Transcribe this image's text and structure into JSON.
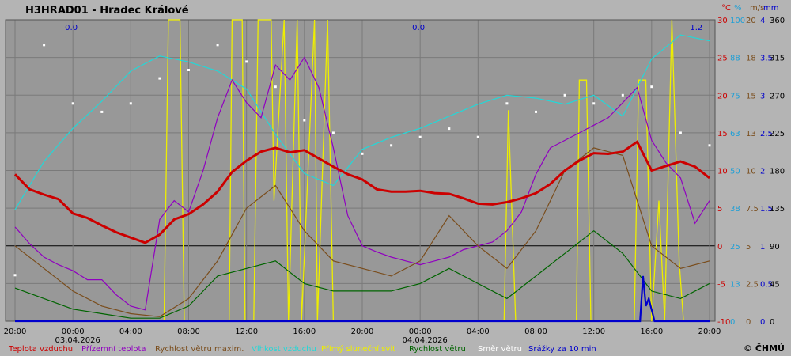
{
  "chart_data": {
    "type": "line",
    "title": "H3HRAD01 - Hradec Králové",
    "copyright": "© ČHMÚ",
    "x_tick_labels": [
      "20:00",
      "00:00",
      "04:00",
      "08:00",
      "12:00",
      "16:00",
      "20:00",
      "00:00",
      "04:00",
      "08:00",
      "12:00",
      "16:00",
      "20:00"
    ],
    "date_labels": [
      "03.04.2026",
      "04.04.2026"
    ],
    "precip_totals": [
      "0.0",
      "0.0",
      "1.2"
    ],
    "axes": [
      {
        "unit": "°C",
        "color": "#cc0000",
        "ticks": [
          "30",
          "25",
          "20",
          "15",
          "10",
          "5",
          "0",
          "-5",
          "-10"
        ],
        "range": [
          -10,
          30
        ]
      },
      {
        "unit": "%",
        "color": "#1e9fd6",
        "ticks": [
          "100",
          "88",
          "75",
          "63",
          "50",
          "38",
          "25",
          "13",
          "0"
        ],
        "range": [
          0,
          100
        ]
      },
      {
        "unit": "m/s",
        "color": "#7a4d1c",
        "ticks": [
          "20",
          "18",
          "15",
          "13",
          "10",
          "7.5",
          "5",
          "2.5",
          "0"
        ],
        "range": [
          0,
          20
        ]
      },
      {
        "unit": "mm",
        "color": "#0000cc",
        "ticks": [
          "4",
          "3.5",
          "3",
          "2.5",
          "2",
          "1.5",
          "1",
          "0.5",
          "0"
        ],
        "range": [
          0,
          4
        ]
      },
      {
        "unit": "",
        "color": "#000000",
        "ticks": [
          "360",
          "315",
          "270",
          "225",
          "180",
          "135",
          "90",
          "45",
          "0"
        ],
        "range": [
          0,
          360
        ]
      }
    ],
    "legend": [
      {
        "label": "Teplota vzduchu",
        "color": "#cc0000"
      },
      {
        "label": "Přízemní teplota",
        "color": "#9000c0"
      },
      {
        "label": "Rychlost větru maxim.",
        "color": "#7a4d1c"
      },
      {
        "label": "Vlhkost vzduchu",
        "color": "#22d8d8"
      },
      {
        "label": "Přímý sluneční svit",
        "color": "#eeee00"
      },
      {
        "label": "Rychlost větru",
        "color": "#006400"
      },
      {
        "label": "Směr větru",
        "color": "#ffffff"
      },
      {
        "label": "Srážky za 10 min",
        "color": "#0000cc"
      }
    ],
    "series": [
      {
        "name": "Teplota vzduchu",
        "unit": "°C",
        "color": "#cc0000",
        "x": [
          0,
          1,
          2,
          3,
          4,
          5,
          6,
          7,
          8,
          9,
          10,
          11,
          12,
          13,
          14,
          15,
          16,
          17,
          18,
          19,
          20,
          21,
          22,
          23,
          24,
          25,
          26,
          27,
          28,
          29,
          30,
          31,
          32,
          33,
          34,
          35,
          36,
          37,
          38,
          39,
          40,
          41,
          42,
          43,
          44,
          45,
          46,
          47,
          48
        ],
        "values": [
          9.5,
          7.5,
          6.8,
          6.2,
          4.3,
          3.7,
          2.7,
          1.8,
          1.1,
          0.4,
          1.5,
          3.5,
          4.2,
          5.5,
          7.2,
          9.8,
          11.3,
          12.5,
          13,
          12.4,
          12.7,
          11.6,
          10.5,
          9.5,
          8.8,
          7.5,
          7.2,
          7.2,
          7.3,
          7,
          6.9,
          6.3,
          5.6,
          5.5,
          5.8,
          6.3,
          7,
          8.2,
          10,
          11.3,
          12.3,
          12.2,
          12.5,
          13.8,
          10,
          10.6,
          11.2,
          10.5,
          9
        ]
      },
      {
        "name": "Přízemní teplota",
        "unit": "°C",
        "color": "#9000c0",
        "x": [
          0,
          1,
          2,
          3,
          4,
          5,
          6,
          7,
          8,
          9,
          10,
          11,
          12,
          13,
          14,
          15,
          16,
          17,
          18,
          19,
          20,
          21,
          22,
          23,
          24,
          25,
          26,
          27,
          28,
          29,
          30,
          31,
          32,
          33,
          34,
          35,
          36,
          37,
          38,
          39,
          40,
          41,
          42,
          43,
          44,
          45,
          46,
          47,
          48
        ],
        "values": [
          2.5,
          0.3,
          -1.5,
          -2.5,
          -3.3,
          -4.5,
          -4.5,
          -6.5,
          -8,
          -8.5,
          3.5,
          6,
          4.5,
          10,
          17,
          22,
          19,
          17,
          24,
          22,
          25,
          21,
          13,
          4,
          0,
          -0.8,
          -1.5,
          -2,
          -2.5,
          -2,
          -1.5,
          -0.5,
          0,
          0.5,
          2,
          4.5,
          9.5,
          13,
          14,
          15,
          16,
          17,
          19,
          21,
          14,
          11,
          9,
          3,
          6
        ]
      },
      {
        "name": "Vlhkost vzduchu",
        "unit": "%",
        "color": "#22d8d8",
        "x": [
          0,
          2,
          4,
          6,
          8,
          10,
          12,
          14,
          16,
          18,
          20,
          22,
          24,
          26,
          28,
          30,
          32,
          34,
          36,
          38,
          40,
          42,
          44,
          46,
          48
        ],
        "values": [
          37,
          53,
          64,
          73,
          83,
          88,
          86,
          83,
          77,
          62,
          49,
          45,
          57,
          61,
          64,
          68,
          72,
          75,
          74,
          72,
          75,
          68,
          87,
          95,
          93
        ]
      },
      {
        "name": "Rychlost větru maxim.",
        "unit": "m/s",
        "color": "#7a4d1c",
        "x": [
          0,
          2,
          4,
          6,
          8,
          10,
          12,
          14,
          16,
          18,
          20,
          22,
          24,
          26,
          28,
          30,
          32,
          34,
          36,
          38,
          40,
          42,
          44,
          46,
          48
        ],
        "values": [
          5,
          3.5,
          2,
          1,
          0.5,
          0.3,
          1.5,
          4,
          7.5,
          9,
          6,
          4,
          3.5,
          3,
          4,
          7,
          5,
          3.5,
          6,
          10,
          11.5,
          11,
          5,
          3.5,
          4
        ]
      },
      {
        "name": "Rychlost větru",
        "unit": "m/s",
        "color": "#006400",
        "x": [
          0,
          2,
          4,
          6,
          8,
          10,
          12,
          14,
          16,
          18,
          20,
          22,
          24,
          26,
          28,
          30,
          32,
          34,
          36,
          38,
          40,
          42,
          44,
          46,
          48
        ],
        "values": [
          2.2,
          1.5,
          0.8,
          0.5,
          0.2,
          0.2,
          1,
          3,
          3.5,
          4,
          2.5,
          2,
          2,
          2,
          2.5,
          3.5,
          2.5,
          1.5,
          3,
          4.5,
          6,
          4.5,
          2,
          1.5,
          2.5
        ]
      },
      {
        "name": "Směr větru",
        "unit": "°",
        "color": "#ffffff",
        "x": [
          0,
          2,
          4,
          6,
          8,
          10,
          12,
          14,
          16,
          18,
          20,
          22,
          24,
          26,
          28,
          30,
          32,
          34,
          36,
          38,
          40,
          42,
          44,
          46,
          48
        ],
        "values": [
          55,
          330,
          260,
          250,
          260,
          290,
          300,
          330,
          310,
          280,
          240,
          225,
          200,
          210,
          220,
          230,
          220,
          260,
          250,
          270,
          260,
          270,
          280,
          225,
          210
        ]
      },
      {
        "name": "Přímý sluneční svit",
        "unit": "",
        "color": "#eeee00",
        "x": [
          0,
          10.3,
          10.6,
          11.4,
          11.7,
          14.8,
          15,
          15.7,
          15.9,
          16.5,
          16.8,
          17.7,
          17.9,
          18.6,
          18.9,
          19.5,
          19.8,
          20.7,
          20.9,
          21.6,
          22,
          33.8,
          34.1,
          34.6,
          38.8,
          39,
          39.5,
          39.8,
          42.8,
          43.1,
          43.6,
          44,
          44.5,
          44.9,
          45.4,
          45.9,
          46.2,
          48
        ],
        "values": [
          0,
          0,
          1,
          1,
          0,
          0,
          1,
          1,
          0,
          0,
          1,
          1,
          0.4,
          1,
          0,
          1,
          0,
          1,
          0,
          1,
          0,
          0,
          0.7,
          0,
          0,
          0.8,
          0.8,
          0,
          0,
          0.8,
          0.8,
          0,
          0.4,
          0,
          1,
          0.2,
          0,
          0
        ]
      },
      {
        "name": "Srážky za 10 min",
        "unit": "mm",
        "color": "#0000cc",
        "x": [
          0,
          43.2,
          43.4,
          43.6,
          43.8,
          44.2,
          48
        ],
        "values": [
          0,
          0,
          0.6,
          0.2,
          0.3,
          0,
          0
        ]
      }
    ]
  }
}
